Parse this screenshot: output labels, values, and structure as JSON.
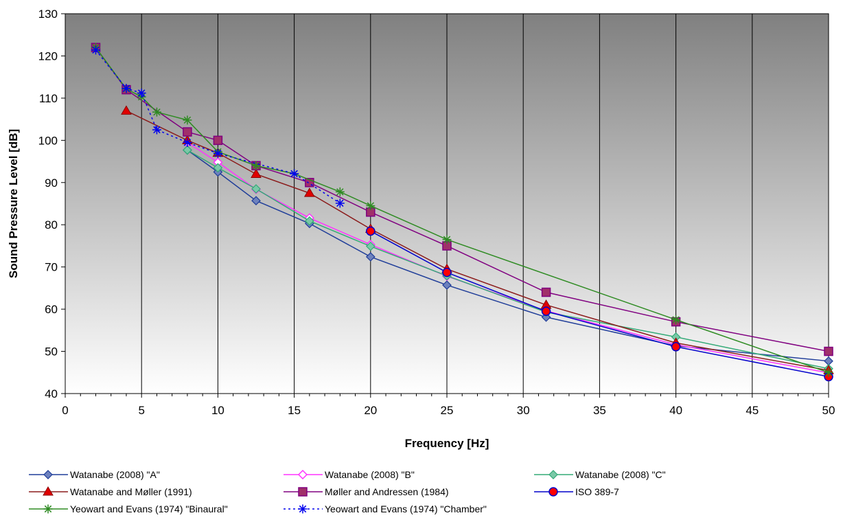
{
  "chart_data": {
    "type": "line",
    "title": "",
    "xlabel": "Frequency [Hz]",
    "ylabel": "Sound Pressure Level [dB]",
    "xlim": [
      0,
      50
    ],
    "ylim": [
      40,
      130
    ],
    "xticks": [
      0,
      5,
      10,
      15,
      20,
      25,
      30,
      35,
      40,
      45,
      50
    ],
    "yticks": [
      40,
      50,
      60,
      70,
      80,
      90,
      100,
      110,
      120,
      130
    ],
    "grid": "vertical",
    "background": "gradient dark gray to white",
    "legend_position": "bottom",
    "series": [
      {
        "name": "Watanabe (2008) \"A\"",
        "color": "#1f3d99",
        "marker": "diamond",
        "dash": "solid",
        "x": [
          8,
          10,
          12.5,
          16,
          20,
          25,
          31.5,
          40,
          50
        ],
        "y": [
          97.7,
          92.5,
          85.7,
          80.3,
          72.4,
          65.7,
          58.1,
          51.3,
          47.7
        ]
      },
      {
        "name": "Watanabe (2008) \"B\"",
        "color": "#ff33ff",
        "marker": "diamond-open",
        "dash": "solid",
        "x": [
          8,
          10,
          12.5,
          16,
          20,
          25,
          31.5,
          40,
          50
        ],
        "y": [
          99.5,
          94.8,
          88.4,
          81.6,
          75.3,
          67.8,
          59.6,
          51.6,
          44.9
        ]
      },
      {
        "name": "Watanabe (2008) \"C\"",
        "color": "#33aa77",
        "marker": "diamond",
        "dash": "solid",
        "x": [
          8,
          10,
          12.5,
          16,
          20,
          25,
          31.5,
          40,
          50
        ],
        "y": [
          97.7,
          93.5,
          88.5,
          80.9,
          74.9,
          67.9,
          59.3,
          53.4,
          45.9
        ]
      },
      {
        "name": "Watanabe and Møller (1991)",
        "color": "#8b1a1a",
        "marker": "triangle",
        "dash": "solid",
        "x": [
          4,
          8,
          10,
          12.5,
          16,
          20,
          25,
          31.5,
          40,
          50
        ],
        "y": [
          107,
          100,
          97,
          92,
          87.5,
          79,
          69.5,
          61,
          52,
          45.5
        ]
      },
      {
        "name": "Møller and Andressen (1984)",
        "color": "#800080",
        "marker": "square",
        "dash": "solid",
        "x": [
          2,
          4,
          8,
          10,
          12.5,
          16,
          20,
          25,
          31.5,
          40,
          50
        ],
        "y": [
          122,
          112,
          102,
          100,
          94,
          90,
          83,
          75,
          64,
          57,
          50
        ]
      },
      {
        "name": "ISO 389-7",
        "color": "#0000cc",
        "marker": "circle",
        "dash": "solid",
        "x": [
          20,
          25,
          31.5,
          40,
          50
        ],
        "y": [
          78.5,
          68.7,
          59.5,
          51.1,
          44.0
        ]
      },
      {
        "name": "Yeowart and Evans (1974) \"Binaural\"",
        "color": "#2e8b22",
        "marker": "star",
        "dash": "solid",
        "x": [
          2,
          4,
          5,
          6,
          8,
          10,
          12.5,
          15,
          18,
          20,
          25,
          40,
          50
        ],
        "y": [
          122,
          112.2,
          110.3,
          106.7,
          104.8,
          97.3,
          94,
          92.1,
          87.8,
          84.5,
          76.5,
          57.5,
          45
        ]
      },
      {
        "name": "Yeowart and Evans (1974) \"Chamber\"",
        "color": "#0000ee",
        "marker": "star",
        "dash": "dotted",
        "x": [
          2,
          4,
          5,
          6,
          8,
          10,
          15,
          18
        ],
        "y": [
          121.4,
          112.3,
          111.2,
          102.5,
          99.5,
          96.9,
          92.1,
          85.1
        ]
      }
    ]
  }
}
